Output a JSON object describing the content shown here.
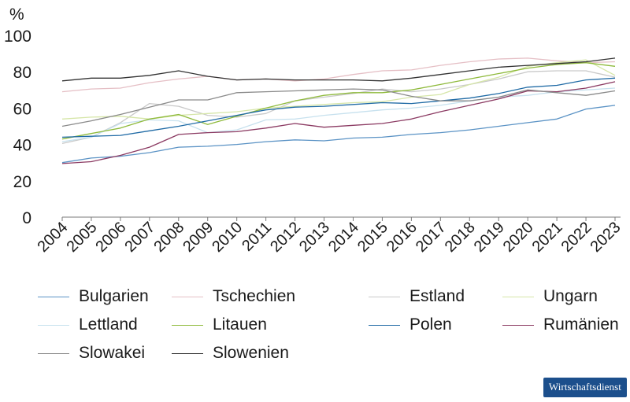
{
  "chart_data": {
    "type": "line",
    "title": "",
    "xlabel": "",
    "ylabel": "%",
    "ylim": [
      0,
      100
    ],
    "yticks": [
      0,
      20,
      40,
      60,
      80,
      100
    ],
    "grid": false,
    "legend_position": "bottom",
    "categories": [
      "2004",
      "2005",
      "2006",
      "2007",
      "2008",
      "2009",
      "2010",
      "2011",
      "2012",
      "2013",
      "2014",
      "2015",
      "2016",
      "2017",
      "2018",
      "2019",
      "2020",
      "2021",
      "2022",
      "2023"
    ],
    "series": [
      {
        "name": "Bulgarien",
        "color": "#5b93c5",
        "values": [
          30,
          32.5,
          33.5,
          35.5,
          38.5,
          39,
          40,
          41.5,
          42.5,
          42,
          43.5,
          44,
          45.5,
          46.5,
          48,
          50,
          52,
          54,
          59.5,
          61.5
        ]
      },
      {
        "name": "Tschechien",
        "color": "#e5bfc5",
        "values": [
          69,
          70.5,
          71,
          74,
          76,
          77.5,
          75.5,
          76,
          75,
          76,
          78.5,
          80.5,
          81,
          83.5,
          85.5,
          87,
          87.5,
          86,
          85,
          85.5
        ]
      },
      {
        "name": "Estland",
        "color": "#c9c9c9",
        "values": [
          40.5,
          44,
          52,
          62.5,
          61,
          56,
          55,
          57,
          64,
          66,
          68,
          70.5,
          69,
          70.5,
          73,
          76,
          80,
          80.5,
          80.5,
          77
        ]
      },
      {
        "name": "Ungarn",
        "color": "#d6e6a8",
        "values": [
          54,
          55,
          55.5,
          54,
          56,
          57,
          58,
          60,
          61,
          62,
          63,
          63.5,
          66,
          67.5,
          73,
          77,
          83,
          85,
          86.5,
          78
        ]
      },
      {
        "name": "Lettland",
        "color": "#c7e1ee",
        "values": [
          41.5,
          44,
          51.5,
          53.5,
          53,
          46.5,
          48,
          53.5,
          54,
          56,
          57.5,
          59,
          60,
          61.5,
          64,
          66,
          67,
          69,
          70,
          71
        ]
      },
      {
        "name": "Litauen",
        "color": "#8fba3c",
        "values": [
          43,
          46,
          49,
          54,
          56.5,
          51,
          55.5,
          60,
          64,
          67,
          68.5,
          68.5,
          70,
          73,
          76,
          79,
          82,
          84,
          85,
          83
        ]
      },
      {
        "name": "Polen",
        "color": "#1f6aa5",
        "values": [
          44,
          44.5,
          45,
          47.5,
          50,
          53,
          56,
          59,
          60.5,
          61,
          62,
          63,
          62.5,
          64,
          65.5,
          68,
          71.5,
          72.5,
          75.5,
          76.5
        ]
      },
      {
        "name": "Rumänien",
        "color": "#8b3a62",
        "values": [
          29.5,
          30.5,
          34,
          38.5,
          45.5,
          46.5,
          47,
          49,
          51.5,
          49.5,
          50.5,
          51.5,
          54,
          58,
          61.5,
          65,
          69.5,
          69,
          71,
          74.5
        ]
      },
      {
        "name": "Slowakei",
        "color": "#8a8a8a",
        "values": [
          50,
          53,
          56.5,
          60.5,
          64.5,
          64.5,
          68.5,
          69,
          69.5,
          70,
          70.5,
          70,
          66.5,
          64,
          64,
          66,
          70,
          68.5,
          67,
          69.5
        ]
      },
      {
        "name": "Slowenien",
        "color": "#333333",
        "values": [
          75,
          76.5,
          76.5,
          78,
          80.5,
          77.5,
          75.5,
          76,
          75.5,
          75.5,
          75.5,
          75,
          76.5,
          78.5,
          80.5,
          82.5,
          83.5,
          84.5,
          85.5,
          87.5
        ]
      }
    ]
  },
  "branding": {
    "label": "Wirtschaftsdienst"
  }
}
